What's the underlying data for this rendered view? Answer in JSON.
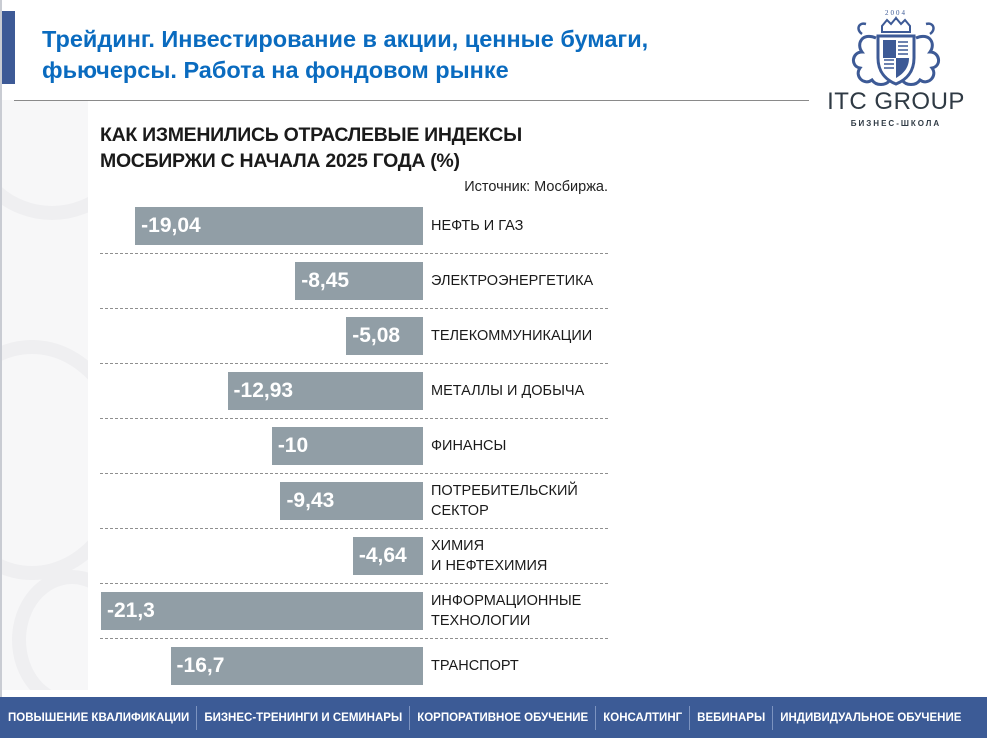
{
  "header": {
    "title": "Трейдинг. Инвестирование в акции, ценные бумаги, фьючерсы. Работа на фондовом рынке",
    "title_line1": "Трейдинг. Инвестирование в акции, ценные бумаги,",
    "title_line2": "фьючерсы. Работа на фондовом рынке"
  },
  "logo": {
    "year": "2004",
    "name": "ITC GROUP",
    "subtitle": "БИЗНЕС-ШКОЛА",
    "icon": "crest-icon"
  },
  "colors": {
    "accent": "#3d5a96",
    "title": "#0a6bbf",
    "bar": "#919ea6",
    "footer": "#3c5b96"
  },
  "chart_data": {
    "type": "bar",
    "orientation": "horizontal",
    "title": "КАК ИЗМЕНИЛИСЬ ОТРАСЛЕВЫЕ ИНДЕКСЫ МОСБИРЖИ С НАЧАЛА 2025 ГОДА (%)",
    "title_line1": "КАК ИЗМЕНИЛИСЬ ОТРАСЛЕВЫЕ ИНДЕКСЫ",
    "title_line2": "МОСБИРЖИ С НАЧАЛА 2025 ГОДА (%)",
    "source": "Источник: Мосбиржа.",
    "xlabel": "",
    "ylabel": "",
    "grid": false,
    "categories": [
      "НЕФТЬ И ГАЗ",
      "ЭЛЕКТРОЭНЕРГЕТИКА",
      "ТЕЛЕКОММУНИКАЦИИ",
      "МЕТАЛЛЫ И ДОБЫЧА",
      "ФИНАНСЫ",
      "ПОТРЕБИТЕЛЬСКИЙ СЕКТОР",
      "ХИМИЯ И НЕФТЕХИМИЯ",
      "ИНФОРМАЦИОННЫЕ ТЕХНОЛОГИИ",
      "ТРАНСПОРТ"
    ],
    "values": [
      -19.04,
      -8.45,
      -5.08,
      -12.93,
      -10,
      -9.43,
      -4.64,
      -21.3,
      -16.7
    ],
    "rows": [
      {
        "label": "НЕФТЬ И ГАЗ",
        "value_label": "-19,04",
        "value": -19.04
      },
      {
        "label": "ЭЛЕКТРОЭНЕРГЕТИКА",
        "value_label": "-8,45",
        "value": -8.45
      },
      {
        "label": "ТЕЛЕКОММУНИКАЦИИ",
        "value_label": "-5,08",
        "value": -5.08
      },
      {
        "label": "МЕТАЛЛЫ И ДОБЫЧА",
        "value_label": "-12,93",
        "value": -12.93
      },
      {
        "label": "ФИНАНСЫ",
        "value_label": "-10",
        "value": -10
      },
      {
        "label": "ПОТРЕБИТЕЛЬСКИЙ\nСЕКТОР",
        "value_label": "-9,43",
        "value": -9.43
      },
      {
        "label": "ХИМИЯ\nИ НЕФТЕХИМИЯ",
        "value_label": "-4,64",
        "value": -4.64
      },
      {
        "label": "ИНФОРМАЦИОННЫЕ\nТЕХНОЛОГИИ",
        "value_label": "-21,3",
        "value": -21.3
      },
      {
        "label": "ТРАНСПОРТ",
        "value_label": "-16,7",
        "value": -16.7
      }
    ],
    "xlim": [
      -21.3,
      0
    ]
  },
  "footer": {
    "items": [
      "ПОВЫШЕНИЕ КВАЛИФИКАЦИИ",
      "БИЗНЕС-ТРЕНИНГИ И СЕМИНАРЫ",
      "КОРПОРАТИВНОЕ ОБУЧЕНИЕ",
      "КОНСАЛТИНГ",
      "ВЕБИНАРЫ",
      "ИНДИВИДУАЛЬНОЕ ОБУЧЕНИЕ"
    ]
  }
}
